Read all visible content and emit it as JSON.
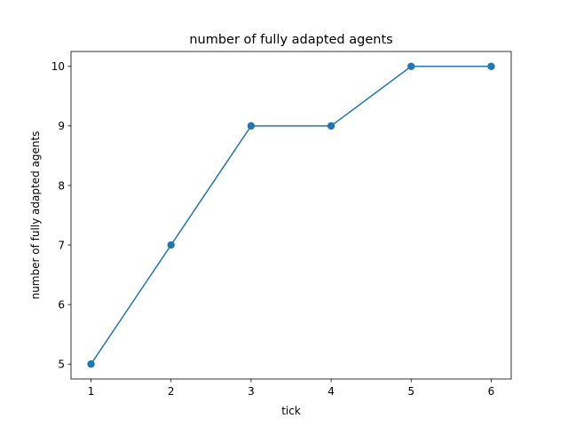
{
  "chart_data": {
    "type": "line",
    "title": "number of fully adapted agents",
    "xlabel": "tick",
    "ylabel": "number of fully adapted agents",
    "x": [
      1,
      2,
      3,
      4,
      5,
      6
    ],
    "series": [
      {
        "name": "number of fully adapted agents",
        "values": [
          5,
          7,
          9,
          9,
          10,
          10
        ],
        "color": "#1f77b4",
        "marker": "circle"
      }
    ],
    "xlim": [
      0.75,
      6.25
    ],
    "ylim": [
      4.75,
      10.25
    ],
    "xticks": [
      1,
      2,
      3,
      4,
      5,
      6
    ],
    "yticks": [
      5,
      6,
      7,
      8,
      9,
      10
    ],
    "grid": false,
    "legend": "none"
  }
}
